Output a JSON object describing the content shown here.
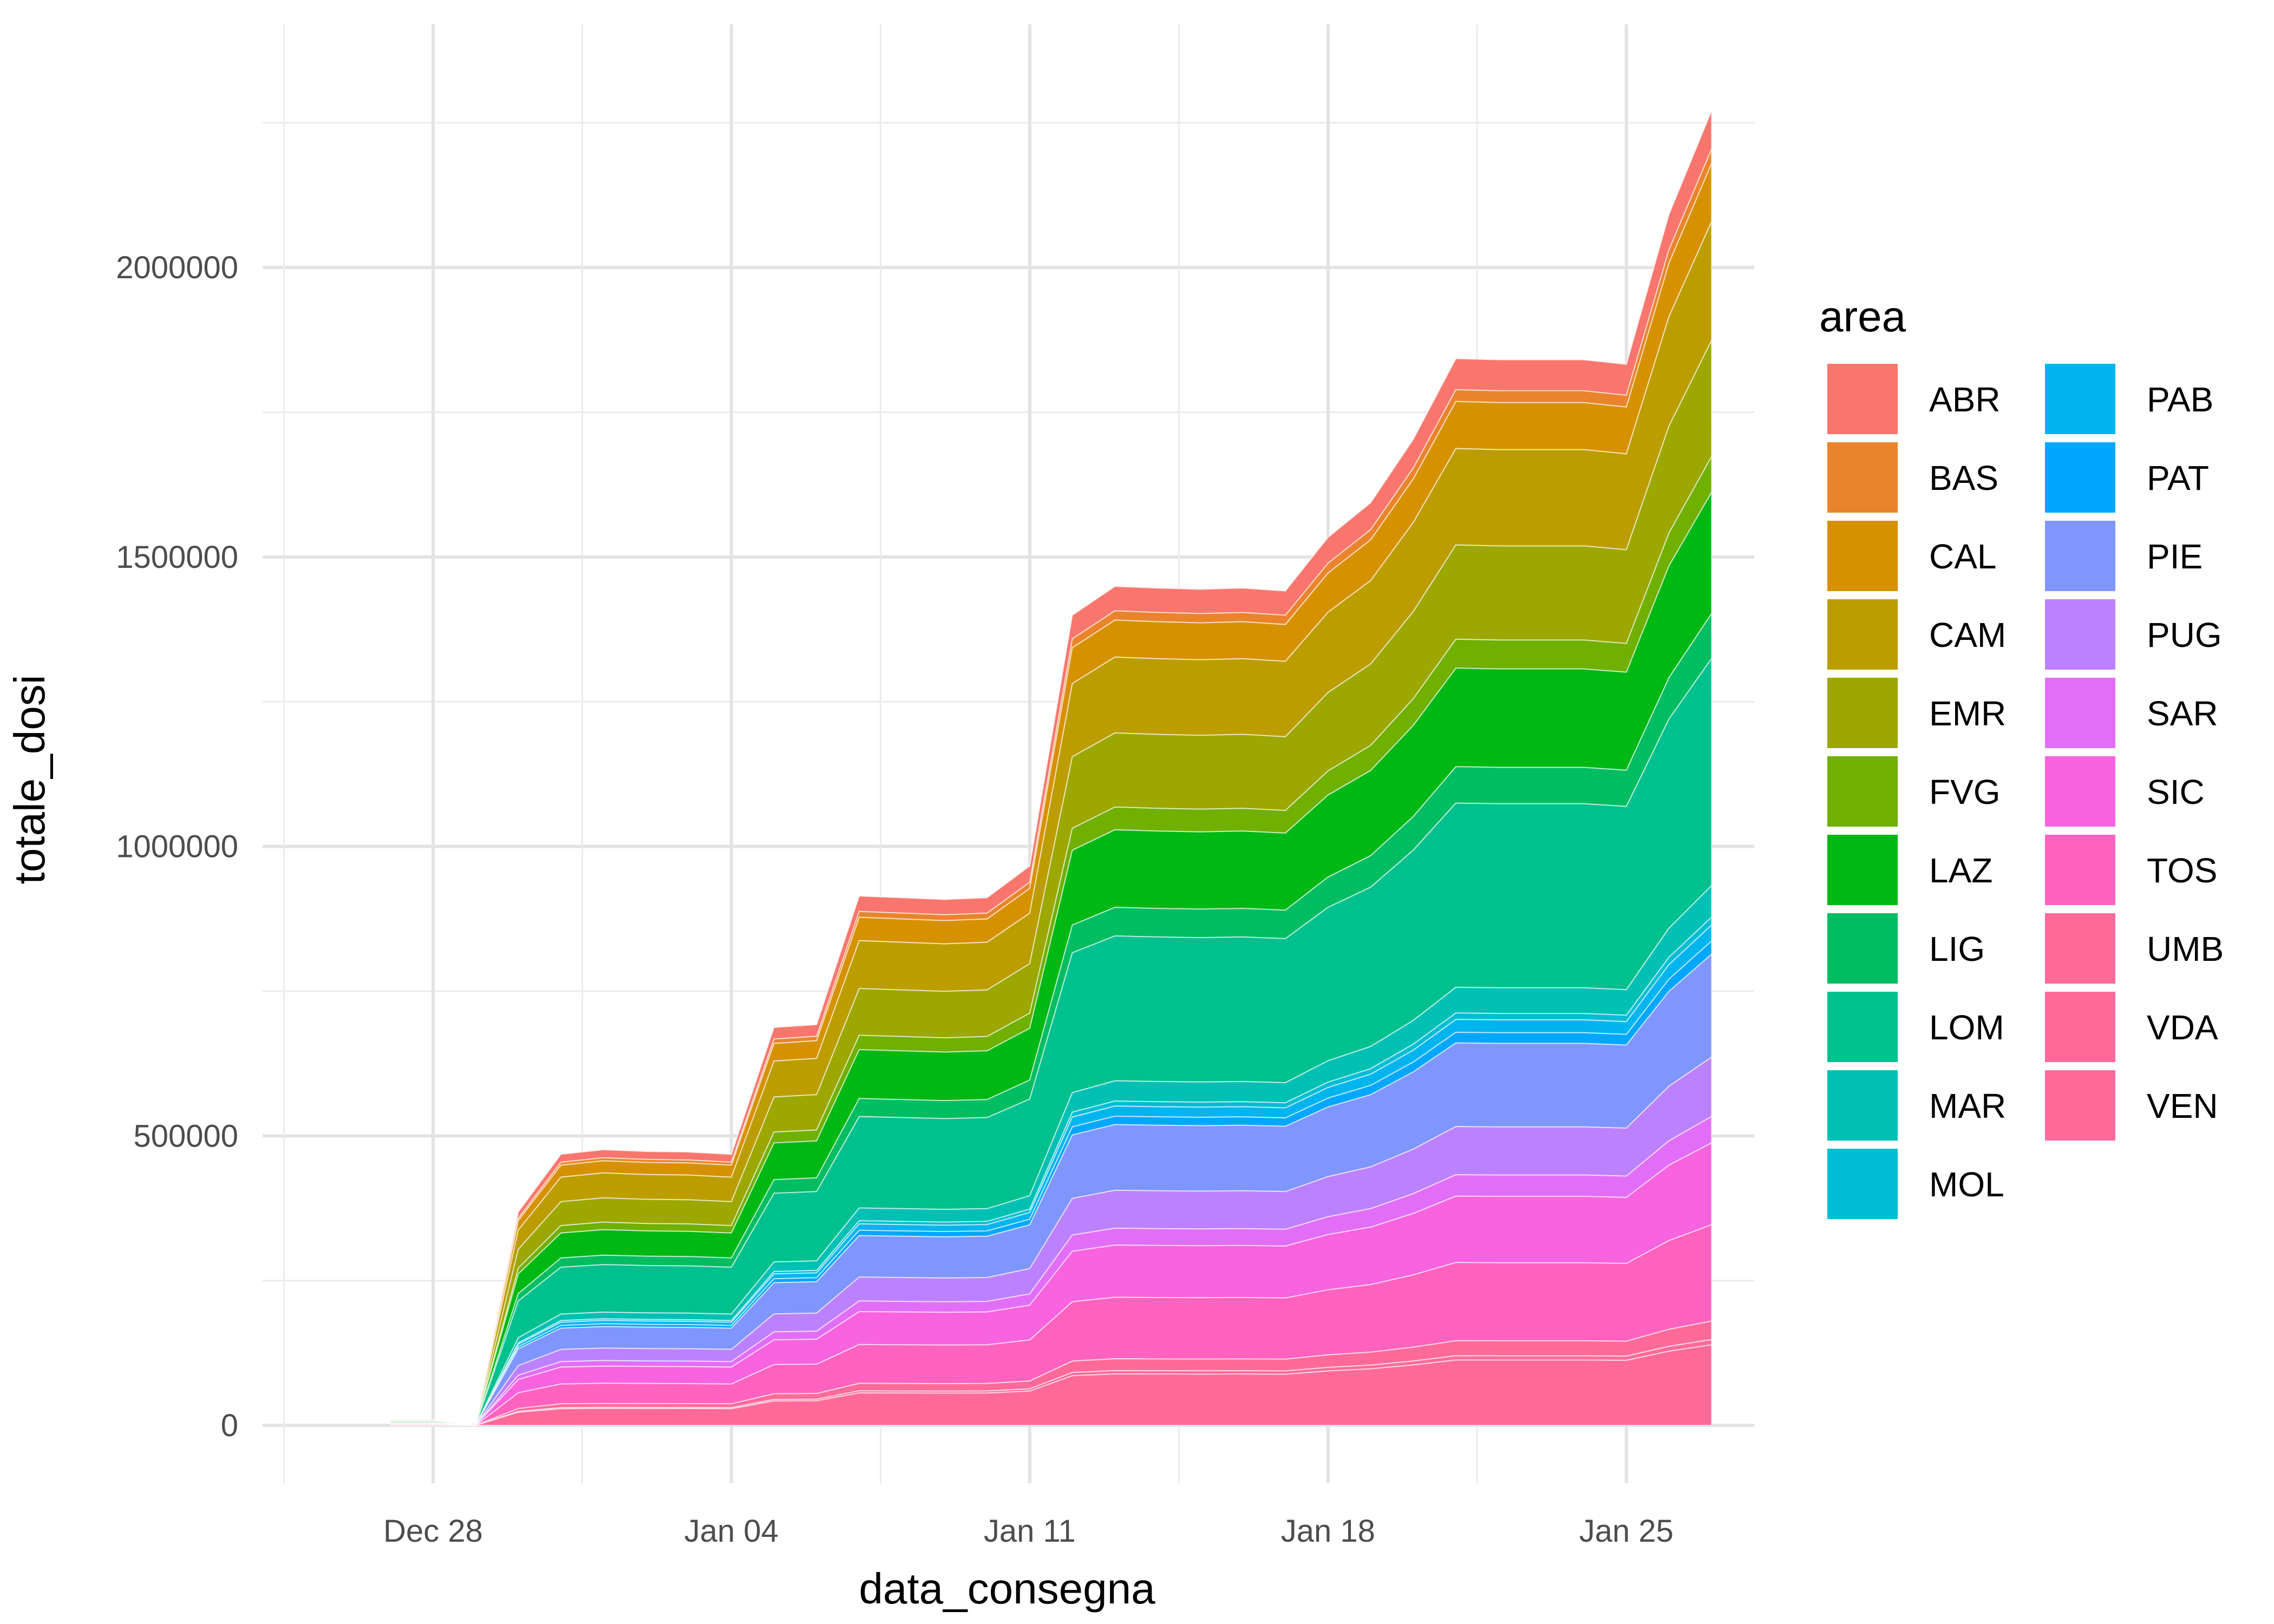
{
  "chart_data": {
    "type": "area",
    "stacked": true,
    "xlabel": "data_consegna",
    "ylabel": "totale_dosi",
    "x_ticks": [
      "Dec 28",
      "Jan 04",
      "Jan 11",
      "Jan 18",
      "Jan 25"
    ],
    "y_ticks": [
      "0",
      "500000",
      "1000000",
      "1500000",
      "2000000"
    ],
    "xlim": [
      "2020-12-24",
      "2021-01-28"
    ],
    "ylim": [
      -100000,
      2420000
    ],
    "grid": true,
    "legend": {
      "title": "area",
      "position": "right",
      "columns": 2
    },
    "x": [
      "2020-12-27",
      "2020-12-28",
      "2020-12-29",
      "2020-12-30",
      "2020-12-31",
      "2021-01-01",
      "2021-01-02",
      "2021-01-03",
      "2021-01-04",
      "2021-01-05",
      "2021-01-06",
      "2021-01-07",
      "2021-01-08",
      "2021-01-09",
      "2021-01-10",
      "2021-01-11",
      "2021-01-12",
      "2021-01-13",
      "2021-01-14",
      "2021-01-15",
      "2021-01-16",
      "2021-01-17",
      "2021-01-18",
      "2021-01-19",
      "2021-01-20",
      "2021-01-21",
      "2021-01-22",
      "2021-01-23",
      "2021-01-24",
      "2021-01-25",
      "2021-01-26",
      "2021-01-27"
    ],
    "totals": [
      9750,
      9750,
      0,
      370000,
      470000,
      478000,
      475000,
      474000,
      470000,
      690000,
      695000,
      918000,
      915000,
      912000,
      915000,
      970000,
      1405000,
      1455000,
      1452000,
      1450000,
      1452000,
      1447000,
      1540000,
      1600000,
      1710000,
      1850000,
      1848000,
      1848000,
      1848000,
      1840000,
      2100000,
      2280000
    ],
    "series": [
      {
        "name": "ABR",
        "color": "#F8766D",
        "share": 0.029
      },
      {
        "name": "BAS",
        "color": "#E9842C",
        "share": 0.011
      },
      {
        "name": "CAL",
        "color": "#D69100",
        "share": 0.044
      },
      {
        "name": "CAM",
        "color": "#BC9D00",
        "share": 0.09
      },
      {
        "name": "EMR",
        "color": "#9CA700",
        "share": 0.088
      },
      {
        "name": "FVG",
        "color": "#6FB000",
        "share": 0.027
      },
      {
        "name": "LAZ",
        "color": "#00B813",
        "share": 0.092
      },
      {
        "name": "LIG",
        "color": "#00BD61",
        "share": 0.034
      },
      {
        "name": "LOM",
        "color": "#00C08E",
        "share": 0.172
      },
      {
        "name": "MAR",
        "color": "#00C0B4",
        "share": 0.024
      },
      {
        "name": "MOL",
        "color": "#00BDD4",
        "share": 0.006
      },
      {
        "name": "PAB",
        "color": "#00B5EE",
        "share": 0.012
      },
      {
        "name": "PAT",
        "color": "#00A7FF",
        "share": 0.01
      },
      {
        "name": "PIE",
        "color": "#7F96FF",
        "share": 0.078
      },
      {
        "name": "PUG",
        "color": "#BC81FF",
        "share": 0.045
      },
      {
        "name": "SAR",
        "color": "#E26EF7",
        "share": 0.02
      },
      {
        "name": "SIC",
        "color": "#F863DF",
        "share": 0.062
      },
      {
        "name": "TOS",
        "color": "#FF62BF",
        "share": 0.073
      },
      {
        "name": "UMB",
        "color": "#FF6A9A",
        "share": 0.014
      },
      {
        "name": "VDA",
        "color": "#FF6A9A",
        "share": 0.004
      },
      {
        "name": "VEN",
        "color": "#FF6A9A",
        "share": 0.061
      }
    ]
  }
}
